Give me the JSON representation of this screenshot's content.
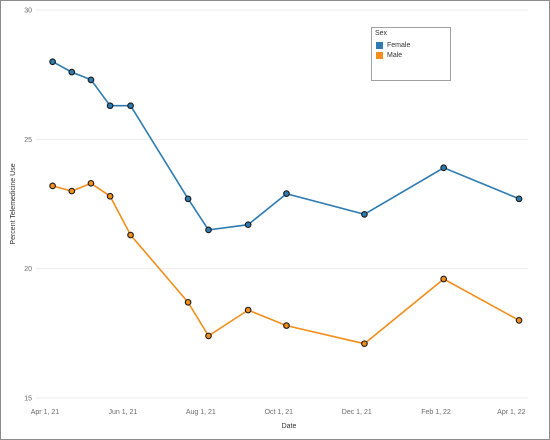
{
  "chart_data": {
    "type": "line",
    "xlabel": "Date",
    "ylabel": "Percent Telemedicine Use",
    "ylim": [
      15,
      30
    ],
    "yticks": [
      15,
      20,
      25,
      30
    ],
    "xticks": [
      "Apr 1, 21",
      "Jun 1, 21",
      "Aug 1, 21",
      "Oct 1, 21",
      "Dec 1, 21",
      "Feb 1, 22",
      "Apr 1, 22"
    ],
    "xtick_dates": [
      "2021-04-01",
      "2021-06-01",
      "2021-08-01",
      "2021-10-01",
      "2021-12-01",
      "2022-02-01",
      "2022-04-01"
    ],
    "grid": true,
    "legend": {
      "title": "Sex",
      "placement": "top-right"
    },
    "series": [
      {
        "name": "Female",
        "color": "#2e7bb0",
        "points": [
          {
            "x": "2021-04-07",
            "y": 28.0
          },
          {
            "x": "2021-04-22",
            "y": 27.6
          },
          {
            "x": "2021-05-07",
            "y": 27.3
          },
          {
            "x": "2021-05-22",
            "y": 26.3
          },
          {
            "x": "2021-06-07",
            "y": 26.3
          },
          {
            "x": "2021-07-22",
            "y": 22.7
          },
          {
            "x": "2021-08-07",
            "y": 21.5
          },
          {
            "x": "2021-09-07",
            "y": 21.7
          },
          {
            "x": "2021-10-07",
            "y": 22.9
          },
          {
            "x": "2021-12-07",
            "y": 22.1
          },
          {
            "x": "2022-02-07",
            "y": 23.9
          },
          {
            "x": "2022-04-07",
            "y": 22.7
          }
        ]
      },
      {
        "name": "Male",
        "color": "#f28e1c",
        "points": [
          {
            "x": "2021-04-07",
            "y": 23.2
          },
          {
            "x": "2021-04-22",
            "y": 23.0
          },
          {
            "x": "2021-05-07",
            "y": 23.3
          },
          {
            "x": "2021-05-22",
            "y": 22.8
          },
          {
            "x": "2021-06-07",
            "y": 21.3
          },
          {
            "x": "2021-07-22",
            "y": 18.7
          },
          {
            "x": "2021-08-07",
            "y": 17.4
          },
          {
            "x": "2021-09-07",
            "y": 18.4
          },
          {
            "x": "2021-10-07",
            "y": 17.8
          },
          {
            "x": "2021-12-07",
            "y": 17.1
          },
          {
            "x": "2022-02-07",
            "y": 19.6
          },
          {
            "x": "2022-04-07",
            "y": 18.0
          }
        ]
      }
    ]
  }
}
